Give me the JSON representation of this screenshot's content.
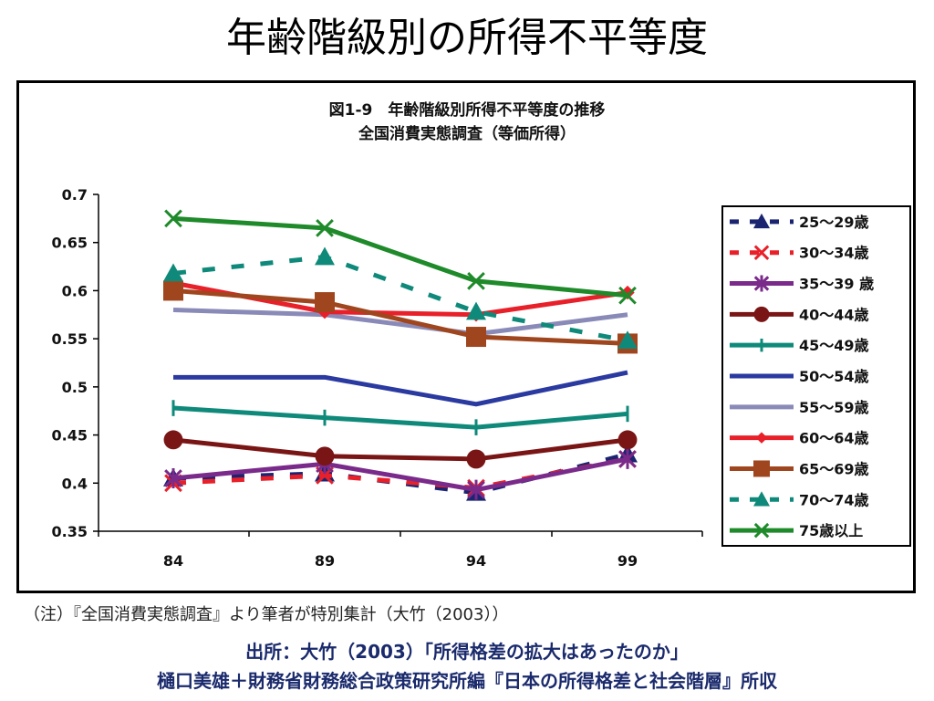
{
  "slide_title": "年齢階級別の所得不平等度",
  "note": "（注）『全国消費実態調査』より筆者が特別集計（大竹（2003））",
  "source_line1": "出所：大竹（2003）「所得格差の拡大はあったのか」",
  "source_line2": "樋口美雄＋財務省財務総合政策研究所編『日本の所得格差と社会階層』所収",
  "chart_data": {
    "type": "line",
    "title": "図1-9　年齢階級別所得不平等度の推移",
    "subtitle": "全国消費実態調査（等価所得）",
    "categories": [
      "84",
      "89",
      "94",
      "99"
    ],
    "ylim": [
      0.35,
      0.7
    ],
    "yticks": [
      "0.7",
      "0.65",
      "0.6",
      "0.55",
      "0.5",
      "0.45",
      "0.4",
      "0.35"
    ],
    "grid": false,
    "legend_position": "right",
    "series": [
      {
        "name": "25～29歳",
        "values": [
          0.405,
          0.41,
          0.39,
          0.43
        ],
        "color": "#1a2470",
        "marker": "triangle",
        "dash": true
      },
      {
        "name": "30～34歳",
        "values": [
          0.4,
          0.408,
          0.395,
          0.425
        ],
        "color": "#e8202a",
        "marker": "x",
        "dash": true
      },
      {
        "name": "35～39 歳",
        "values": [
          0.405,
          0.42,
          0.393,
          0.425
        ],
        "color": "#7a2a8a",
        "marker": "star",
        "dash": false
      },
      {
        "name": "40～44歳",
        "values": [
          0.445,
          0.428,
          0.425,
          0.445
        ],
        "color": "#7a1515",
        "marker": "circle",
        "dash": false
      },
      {
        "name": "45～49歳",
        "values": [
          0.478,
          0.468,
          0.458,
          0.472
        ],
        "color": "#0f8a7a",
        "marker": "plus",
        "dash": false
      },
      {
        "name": "50～54歳",
        "values": [
          0.51,
          0.51,
          0.482,
          0.515
        ],
        "color": "#2a3aa0",
        "marker": "none",
        "dash": false
      },
      {
        "name": "55～59歳",
        "values": [
          0.58,
          0.575,
          0.555,
          0.575
        ],
        "color": "#8a8ab8",
        "marker": "none",
        "dash": false
      },
      {
        "name": "60～64歳",
        "values": [
          0.608,
          0.578,
          0.575,
          0.598
        ],
        "color": "#e8202a",
        "marker": "diamond",
        "dash": false
      },
      {
        "name": "65～69歳",
        "values": [
          0.6,
          0.588,
          0.552,
          0.545
        ],
        "color": "#a0461e",
        "marker": "square",
        "dash": false
      },
      {
        "name": "70～74歳",
        "values": [
          0.618,
          0.635,
          0.578,
          0.548
        ],
        "color": "#0f8a7a",
        "marker": "triangle",
        "dash": true
      },
      {
        "name": "75歳以上",
        "values": [
          0.675,
          0.665,
          0.61,
          0.595
        ],
        "color": "#1e8a2a",
        "marker": "x",
        "dash": false
      }
    ]
  }
}
